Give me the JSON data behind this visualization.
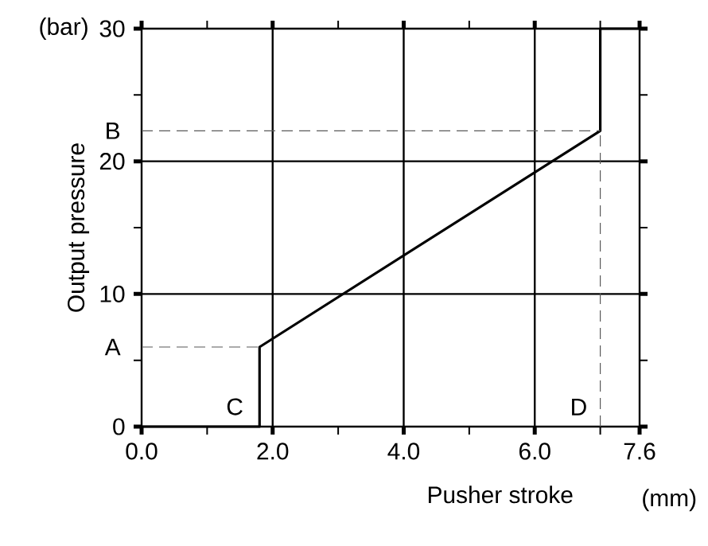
{
  "chart_data": {
    "type": "line",
    "xlabel": "Pusher stroke",
    "ylabel": "Output pressure",
    "x": [
      0,
      1.8,
      1.8,
      7.0,
      7.0,
      7.6
    ],
    "series": [
      {
        "color": "#000000",
        "values": [
          0,
          0,
          6,
          22.3,
          30,
          30
        ]
      }
    ],
    "xlim": [
      0,
      7.6
    ],
    "ylim": [
      0,
      30
    ],
    "xticks": [
      {
        "value": 0,
        "label": "0.0"
      },
      {
        "value": 1,
        "label": null
      },
      {
        "value": 2,
        "label": "2.0"
      },
      {
        "value": 3,
        "label": null
      },
      {
        "value": 4,
        "label": "4.0"
      },
      {
        "value": 5,
        "label": null
      },
      {
        "value": 6,
        "label": "6.0"
      },
      {
        "value": 7,
        "label": null
      },
      {
        "value": 7.6,
        "label": "7.6"
      }
    ],
    "yticks": [
      0,
      {
        "value": 5,
        "label": null
      },
      10,
      {
        "value": 15,
        "label": null
      },
      20,
      {
        "value": 25,
        "label": null
      },
      30
    ],
    "grid": true,
    "marker": "none",
    "line_style": "solid",
    "ref_lines": [
      {
        "axis": "y",
        "value": 6,
        "label": "A",
        "line_style": "dashed"
      },
      {
        "axis": "y",
        "value": 22.3,
        "label": "B",
        "line_style": "dashed"
      },
      {
        "axis": "x",
        "value": 7.0,
        "label": "D",
        "line_style": "dashed"
      }
    ],
    "annotations": [
      {
        "text": "C",
        "x": 1.8,
        "y": 0
      },
      "(bar)",
      "(mm)"
    ]
  }
}
